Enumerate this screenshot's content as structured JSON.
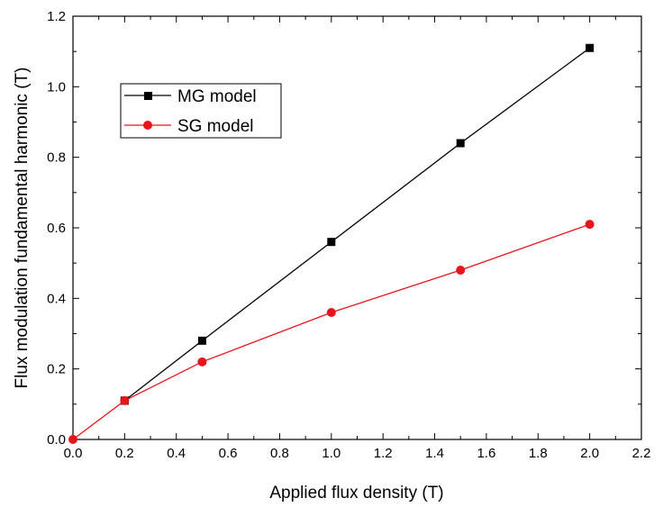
{
  "chart_data": {
    "type": "line",
    "title": "",
    "xlabel": "Applied flux density (T)",
    "ylabel": "Flux modulation fundamental harmonic (T)",
    "xlim": [
      0.0,
      2.2
    ],
    "ylim": [
      0.0,
      1.2
    ],
    "x_ticks": [
      "0.0",
      "0.2",
      "0.4",
      "0.6",
      "0.8",
      "1.0",
      "1.2",
      "1.4",
      "1.6",
      "1.8",
      "2.0",
      "2.2"
    ],
    "y_ticks": [
      "0.0",
      "0.2",
      "0.4",
      "0.6",
      "0.8",
      "1.0",
      "1.2"
    ],
    "grid": false,
    "legend_position": "top-left",
    "series": [
      {
        "name": "MG model",
        "color": "#000000",
        "marker": "square",
        "x": [
          0.2,
          0.5,
          1.0,
          1.5,
          2.0
        ],
        "y": [
          0.11,
          0.28,
          0.56,
          0.84,
          1.11
        ]
      },
      {
        "name": "SG model",
        "color": "#e8141b",
        "marker": "circle",
        "x": [
          0.0,
          0.2,
          0.5,
          1.0,
          1.5,
          2.0
        ],
        "y": [
          0.0,
          0.11,
          0.22,
          0.36,
          0.48,
          0.61
        ]
      }
    ]
  }
}
